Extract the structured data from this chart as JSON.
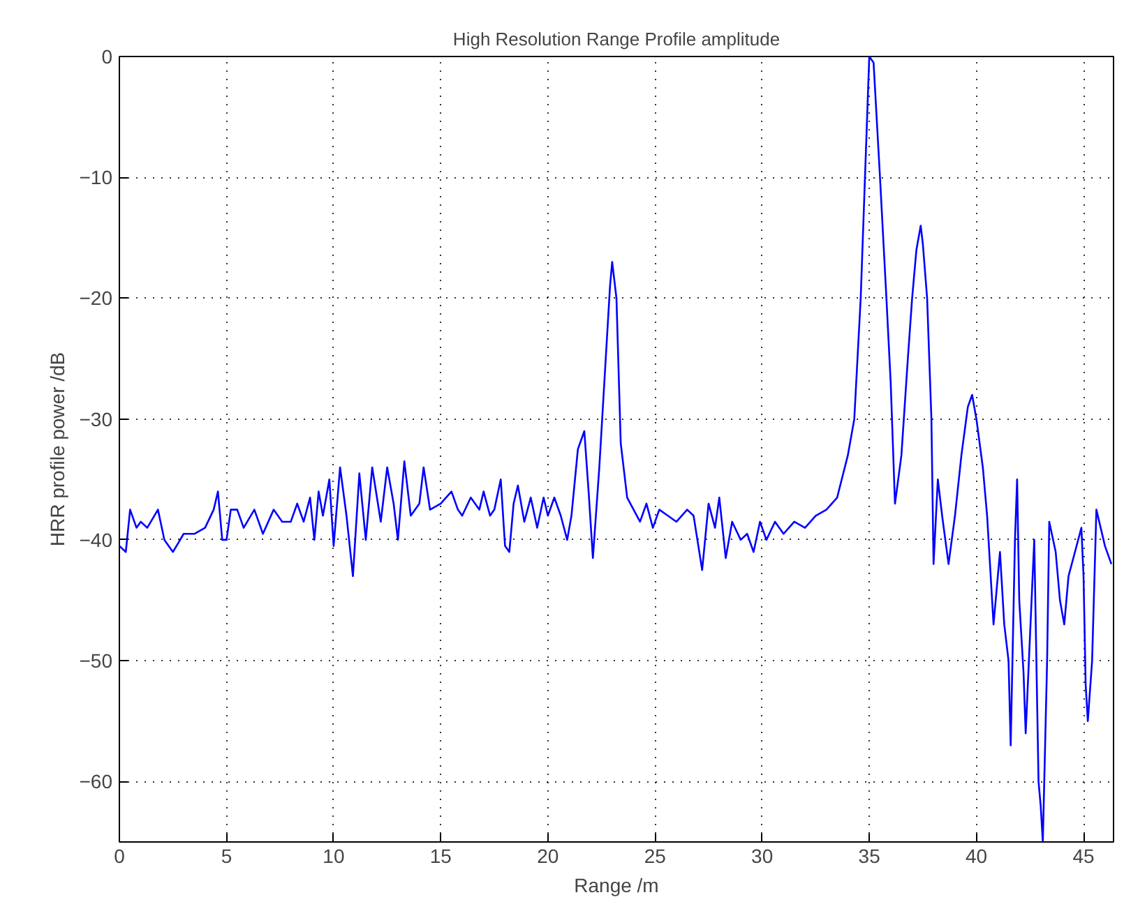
{
  "chart_data": {
    "type": "line",
    "title": "High Resolution Range Profile amplitude",
    "xlabel": "Range /m",
    "ylabel": "HRR profile power /dB",
    "xlim": [
      0,
      46.4
    ],
    "ylim": [
      -65,
      0
    ],
    "xticks": [
      0,
      5,
      10,
      15,
      20,
      25,
      30,
      35,
      40,
      45
    ],
    "yticks": [
      -60,
      -50,
      -40,
      -30,
      -20,
      -10,
      0
    ],
    "grid": true,
    "line_style": "solid",
    "marker": "none",
    "series": [
      {
        "color": "#0000ff",
        "x": [
          0,
          0.3,
          0.5,
          0.8,
          1,
          1.3,
          1.8,
          2.1,
          2.5,
          3,
          3.5,
          4,
          4.4,
          4.6,
          4.8,
          5,
          5.2,
          5.5,
          5.8,
          6.3,
          6.7,
          7.2,
          7.6,
          8,
          8.3,
          8.6,
          8.9,
          9.1,
          9.3,
          9.5,
          9.8,
          10,
          10.3,
          10.6,
          10.9,
          11.2,
          11.5,
          11.8,
          12.2,
          12.5,
          12.8,
          13,
          13.3,
          13.6,
          14,
          14.2,
          14.5,
          15,
          15.5,
          15.8,
          16,
          16.4,
          16.8,
          17,
          17.3,
          17.5,
          17.8,
          18,
          18.2,
          18.4,
          18.6,
          18.9,
          19.2,
          19.5,
          19.8,
          20,
          20.3,
          20.6,
          20.9,
          21.1,
          21.4,
          21.7,
          21.9,
          22.1,
          22.4,
          22.7,
          22.9,
          23,
          23.2,
          23.4,
          23.7,
          24,
          24.3,
          24.6,
          24.9,
          25.2,
          25.6,
          26,
          26.5,
          26.8,
          27.2,
          27.5,
          27.8,
          28,
          28.3,
          28.6,
          29,
          29.3,
          29.6,
          29.9,
          30.2,
          30.6,
          31,
          31.5,
          32,
          32.5,
          33,
          33.5,
          34,
          34.3,
          34.6,
          34.9,
          35,
          35.2,
          35.5,
          35.8,
          36,
          36.2,
          36.5,
          36.8,
          37,
          37.2,
          37.4,
          37.5,
          37.7,
          37.9,
          38,
          38.2,
          38.4,
          38.7,
          39,
          39.3,
          39.6,
          39.8,
          40,
          40.3,
          40.5,
          40.7,
          40.8,
          41.1,
          41.3,
          41.5,
          41.6,
          41.8,
          41.9,
          42,
          42.2,
          42.3,
          42.5,
          42.7,
          42.9,
          43,
          43.1,
          43.3,
          43.4,
          43.7,
          43.9,
          44.1,
          44.3,
          44.6,
          44.9,
          45,
          45.1,
          45.2,
          45.4,
          45.6,
          45.8,
          46,
          46.3
        ],
        "values": [
          -40.5,
          -41,
          -37.5,
          -39,
          -38.5,
          -39,
          -37.5,
          -40,
          -41,
          -39.5,
          -39.5,
          -39,
          -37.5,
          -36,
          -40,
          -40,
          -37.5,
          -37.5,
          -39,
          -37.5,
          -39.5,
          -37.5,
          -38.5,
          -38.5,
          -37,
          -38.5,
          -36.5,
          -40,
          -36,
          -38,
          -35,
          -40.5,
          -34,
          -38,
          -43,
          -34.5,
          -40,
          -34,
          -38.5,
          -34,
          -37,
          -40,
          -33.5,
          -38,
          -37,
          -34,
          -37.5,
          -37,
          -36,
          -37.5,
          -38,
          -36.5,
          -37.5,
          -36,
          -38,
          -37.5,
          -35,
          -40.5,
          -41,
          -37,
          -35.5,
          -38.5,
          -36.5,
          -39,
          -36.5,
          -38,
          -36.5,
          -38,
          -40,
          -38,
          -32.5,
          -31,
          -36,
          -41.5,
          -34,
          -25,
          -19,
          -17,
          -20,
          -32,
          -36.5,
          -37.5,
          -38.5,
          -37,
          -39,
          -37.5,
          -38,
          -38.5,
          -37.5,
          -38,
          -42.5,
          -37,
          -39,
          -36.5,
          -41.5,
          -38.5,
          -40,
          -39.5,
          -41,
          -38.5,
          -40,
          -38.5,
          -39.5,
          -38.5,
          -39,
          -38,
          -37.5,
          -36.5,
          -33,
          -30,
          -20,
          -5,
          0,
          -0.5,
          -10,
          -20,
          -27,
          -37,
          -33,
          -25,
          -20,
          -16,
          -14,
          -15.5,
          -20,
          -30,
          -42,
          -35,
          -38,
          -42,
          -38,
          -33,
          -29,
          -28,
          -30,
          -34,
          -38,
          -44,
          -47,
          -41,
          -47,
          -50,
          -57,
          -40,
          -35,
          -45,
          -51,
          -56,
          -48,
          -40,
          -60,
          -62,
          -65,
          -50,
          -38.5,
          -41,
          -45,
          -47,
          -43,
          -41,
          -39,
          -43,
          -52,
          -55,
          -50,
          -37.5,
          -39,
          -40.5,
          -42
        ]
      }
    ]
  }
}
